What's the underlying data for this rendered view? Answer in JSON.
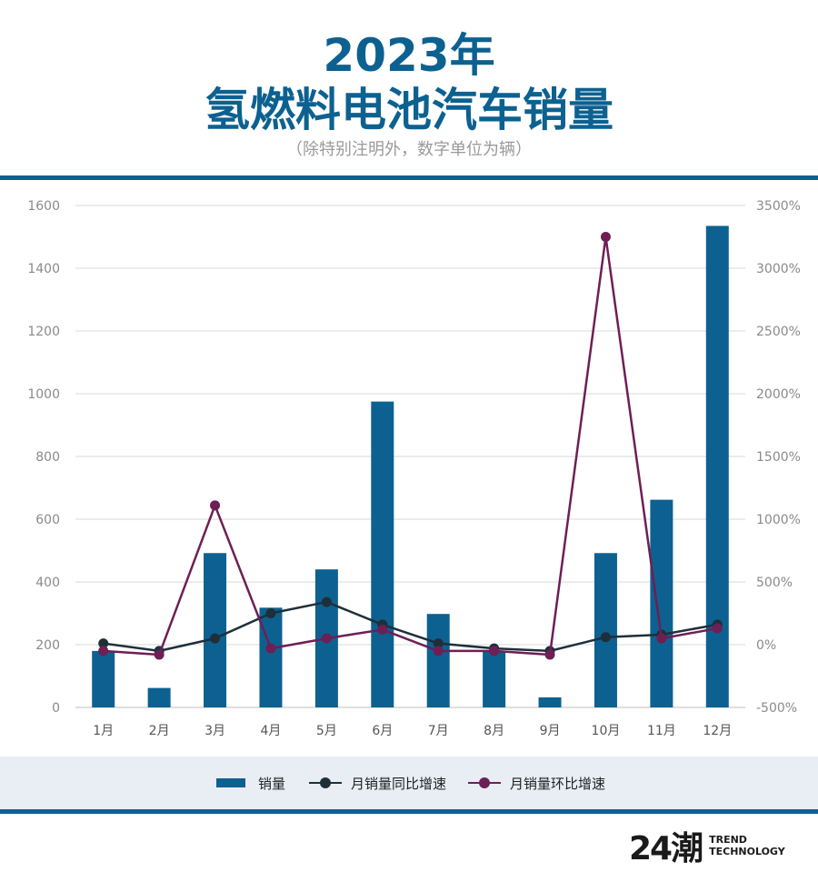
{
  "header": {
    "title_line1": "2023年",
    "title_line2": "氢燃料电池汽车销量",
    "subtitle": "（除特别注明外，数字单位为辆）"
  },
  "legend": {
    "bar_label": "销量",
    "yoy_label": "月销量同比增速",
    "mom_label": "月销量环比增速"
  },
  "logo": {
    "mark": "24潮",
    "line1": "TREND",
    "line2": "TECHNOLOGY"
  },
  "colors": {
    "bar": "#0d6190",
    "yoy": "#1f2f3a",
    "mom": "#6e1f55",
    "grid": "#d9d9d9",
    "axis_text": "#8a8a8a"
  },
  "chart_data": {
    "type": "bar",
    "categories": [
      "1月",
      "2月",
      "3月",
      "4月",
      "5月",
      "6月",
      "7月",
      "8月",
      "9月",
      "10月",
      "11月",
      "12月"
    ],
    "series": [
      {
        "name": "销量",
        "type": "bar",
        "axis": "left",
        "values": [
          180,
          62,
          492,
          318,
          440,
          975,
          298,
          180,
          32,
          492,
          662,
          1535
        ]
      },
      {
        "name": "月销量同比增速",
        "type": "line",
        "axis": "right",
        "values": [
          10,
          -50,
          50,
          250,
          340,
          160,
          10,
          -30,
          -50,
          60,
          80,
          160
        ]
      },
      {
        "name": "月销量环比增速",
        "type": "line",
        "axis": "right",
        "values": [
          -50,
          -80,
          1110,
          -30,
          50,
          120,
          -50,
          -50,
          -80,
          3250,
          50,
          130
        ]
      }
    ],
    "y_left": {
      "min": 0,
      "max": 1600,
      "ticks": [
        0,
        200,
        400,
        600,
        800,
        1000,
        1200,
        1400,
        1600
      ]
    },
    "y_right": {
      "min": -500,
      "max": 3500,
      "ticks": [
        -500,
        0,
        500,
        1000,
        1500,
        2000,
        2500,
        3000,
        3500
      ],
      "tick_labels": [
        "-500%",
        "0%",
        "500%",
        "1000%",
        "1500%",
        "2000%",
        "2500%",
        "3000%",
        "3500%"
      ]
    },
    "grid": true,
    "legend_position": "bottom"
  }
}
